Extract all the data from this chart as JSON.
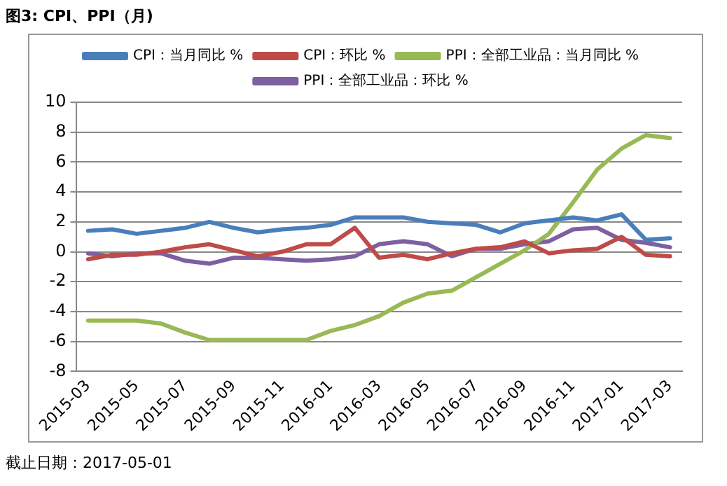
{
  "chart_data": {
    "type": "line",
    "title": "图3: CPI、PPI（月)",
    "annotations": [
      "截止日期：2017-05-01"
    ],
    "categories": [
      "2015-03",
      null,
      "2015-05",
      null,
      "2015-07",
      null,
      "2015-09",
      null,
      "2015-11",
      null,
      "2016-01",
      null,
      "2016-03",
      null,
      "2016-05",
      null,
      "2016-07",
      null,
      "2016-09",
      null,
      "2016-11",
      null,
      "2017-01",
      null,
      "2017-03"
    ],
    "series": [
      {
        "name": "CPI：当月同比 %",
        "color": "#4a7ebb",
        "values": [
          1.4,
          1.5,
          1.2,
          1.4,
          1.6,
          2.0,
          1.6,
          1.3,
          1.5,
          1.6,
          1.8,
          2.3,
          2.3,
          2.3,
          2.0,
          1.9,
          1.8,
          1.3,
          1.9,
          2.1,
          2.3,
          2.1,
          2.5,
          0.8,
          0.9
        ]
      },
      {
        "name": "CPI：环比 %",
        "color": "#be4b48",
        "values": [
          -0.5,
          -0.2,
          -0.2,
          0.0,
          0.3,
          0.5,
          0.1,
          -0.3,
          0.0,
          0.5,
          0.5,
          1.6,
          -0.4,
          -0.2,
          -0.5,
          -0.1,
          0.2,
          0.3,
          0.7,
          -0.1,
          0.1,
          0.2,
          1.0,
          -0.2,
          -0.3
        ]
      },
      {
        "name": "PPI：全部工业品：当月同比 %",
        "color": "#98b954",
        "values": [
          -4.6,
          -4.6,
          -4.6,
          -4.8,
          -5.4,
          -5.9,
          -5.9,
          -5.9,
          -5.9,
          -5.9,
          -5.3,
          -4.9,
          -4.3,
          -3.4,
          -2.8,
          -2.6,
          -1.7,
          -0.8,
          0.1,
          1.2,
          3.3,
          5.5,
          6.9,
          7.8,
          7.6
        ]
      },
      {
        "name": "PPI：全部工业品：环比 %",
        "color": "#7d60a0",
        "values": [
          -0.1,
          -0.3,
          -0.1,
          -0.1,
          -0.6,
          -0.8,
          -0.4,
          -0.4,
          -0.5,
          -0.6,
          -0.5,
          -0.3,
          0.5,
          0.7,
          0.5,
          -0.3,
          0.2,
          0.2,
          0.5,
          0.7,
          1.5,
          1.6,
          0.8,
          0.6,
          0.3
        ]
      }
    ],
    "ylim": [
      -8,
      10
    ],
    "yticks": [
      -8,
      -6,
      -4,
      -2,
      0,
      2,
      4,
      6,
      8,
      10
    ],
    "grid": "y",
    "legend": "top",
    "marker": "none",
    "line_style": "solid"
  }
}
